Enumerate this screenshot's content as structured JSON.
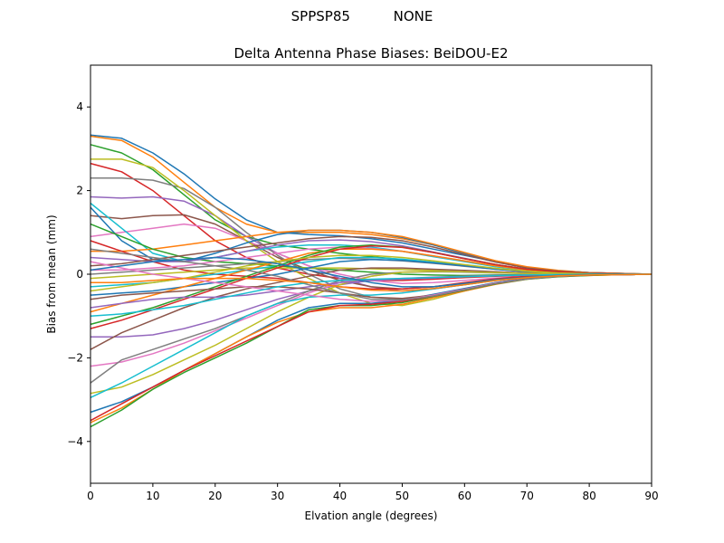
{
  "figure": {
    "suptitle_left": "SPPSP85",
    "suptitle_right": "NONE"
  },
  "chart_data": {
    "type": "line",
    "title": "Delta Antenna Phase Biases: BeiDOU-E2",
    "xlabel": "Elvation angle (degrees)",
    "ylabel": "Bias from mean (mm)",
    "xlim": [
      0,
      90
    ],
    "ylim": [
      -5,
      5
    ],
    "xticks": [
      "0",
      "10",
      "20",
      "30",
      "40",
      "50",
      "60",
      "70",
      "80",
      "90"
    ],
    "yticks": [
      "−4",
      "−2",
      "0",
      "2",
      "4"
    ],
    "grid": false,
    "legend": "none",
    "colors": [
      "#1f77b4",
      "#ff7f0e",
      "#2ca02c",
      "#d62728",
      "#9467bd",
      "#8c564b",
      "#e377c2",
      "#7f7f7f",
      "#bcbd22",
      "#17becf"
    ],
    "x": [
      0,
      5,
      10,
      15,
      20,
      25,
      30,
      35,
      40,
      45,
      50,
      55,
      60,
      65,
      70,
      75,
      80,
      85,
      90
    ],
    "series": [
      {
        "values": [
          3.33,
          3.25,
          2.9,
          2.4,
          1.8,
          1.3,
          1.0,
          0.95,
          0.92,
          0.85,
          0.75,
          0.6,
          0.45,
          0.3,
          0.17,
          0.08,
          0.04,
          0.02,
          0.0
        ]
      },
      {
        "values": [
          3.3,
          3.2,
          2.8,
          2.2,
          1.6,
          1.2,
          1.0,
          1.0,
          1.0,
          0.95,
          0.85,
          0.7,
          0.5,
          0.32,
          0.18,
          0.09,
          0.04,
          0.02,
          0.0
        ]
      },
      {
        "values": [
          3.1,
          2.9,
          2.5,
          1.9,
          1.3,
          0.9,
          0.7,
          0.6,
          0.5,
          0.42,
          0.35,
          0.28,
          0.2,
          0.13,
          0.07,
          0.03,
          0.02,
          0.01,
          0.0
        ]
      },
      {
        "values": [
          2.65,
          2.45,
          2.0,
          1.4,
          0.8,
          0.4,
          0.15,
          0.0,
          -0.1,
          -0.15,
          -0.15,
          -0.12,
          -0.08,
          -0.05,
          -0.03,
          -0.02,
          -0.01,
          0.0,
          0.0
        ]
      },
      {
        "values": [
          1.85,
          1.82,
          1.85,
          1.75,
          1.4,
          0.9,
          0.5,
          0.2,
          -0.1,
          -0.3,
          -0.4,
          -0.35,
          -0.25,
          -0.15,
          -0.08,
          -0.04,
          -0.02,
          -0.01,
          0.0
        ]
      },
      {
        "values": [
          1.4,
          1.33,
          1.4,
          1.42,
          1.2,
          0.8,
          0.4,
          0.1,
          -0.15,
          -0.3,
          -0.35,
          -0.3,
          -0.22,
          -0.13,
          -0.07,
          -0.03,
          -0.02,
          -0.01,
          0.0
        ]
      },
      {
        "values": [
          0.9,
          1.0,
          1.1,
          1.2,
          1.1,
          0.8,
          0.5,
          0.2,
          0.0,
          -0.15,
          -0.22,
          -0.2,
          -0.15,
          -0.09,
          -0.05,
          -0.02,
          -0.01,
          0.0,
          0.0
        ]
      },
      {
        "values": [
          2.3,
          2.3,
          2.25,
          2.05,
          1.6,
          1.0,
          0.45,
          0.0,
          -0.35,
          -0.55,
          -0.6,
          -0.5,
          -0.35,
          -0.2,
          -0.1,
          -0.05,
          -0.02,
          -0.01,
          0.0
        ]
      },
      {
        "values": [
          2.75,
          2.75,
          2.55,
          2.0,
          1.4,
          0.8,
          0.3,
          -0.1,
          -0.45,
          -0.7,
          -0.75,
          -0.6,
          -0.4,
          -0.22,
          -0.11,
          -0.05,
          -0.02,
          -0.01,
          0.0
        ]
      },
      {
        "values": [
          1.7,
          1.1,
          0.5,
          0.3,
          0.4,
          0.55,
          0.65,
          0.7,
          0.7,
          0.65,
          0.55,
          0.42,
          0.3,
          0.18,
          0.09,
          0.04,
          0.02,
          0.01,
          0.0
        ]
      },
      {
        "values": [
          1.6,
          0.8,
          0.35,
          0.3,
          0.5,
          0.75,
          0.95,
          1.05,
          1.05,
          1.0,
          0.88,
          0.7,
          0.5,
          0.3,
          0.16,
          0.08,
          0.04,
          0.02,
          0.0
        ]
      },
      {
        "values": [
          0.55,
          0.55,
          0.6,
          0.7,
          0.8,
          0.9,
          1.0,
          1.05,
          1.05,
          1.0,
          0.9,
          0.72,
          0.52,
          0.32,
          0.17,
          0.08,
          0.04,
          0.02,
          0.0
        ]
      },
      {
        "values": [
          1.2,
          0.9,
          0.6,
          0.4,
          0.3,
          0.25,
          0.2,
          0.15,
          0.1,
          0.05,
          0.0,
          -0.02,
          -0.03,
          -0.02,
          -0.01,
          0.0,
          0.0,
          0.0,
          0.0
        ]
      },
      {
        "values": [
          0.8,
          0.55,
          0.3,
          0.1,
          0.0,
          -0.05,
          -0.1,
          -0.2,
          -0.3,
          -0.35,
          -0.35,
          -0.3,
          -0.2,
          -0.11,
          -0.05,
          -0.02,
          -0.01,
          0.0,
          0.0
        ]
      },
      {
        "values": [
          0.4,
          0.35,
          0.3,
          0.3,
          0.4,
          0.55,
          0.7,
          0.8,
          0.82,
          0.78,
          0.68,
          0.53,
          0.38,
          0.23,
          0.12,
          0.06,
          0.03,
          0.01,
          0.0
        ]
      },
      {
        "values": [
          0.2,
          0.25,
          0.35,
          0.45,
          0.55,
          0.65,
          0.75,
          0.85,
          0.9,
          0.88,
          0.8,
          0.65,
          0.47,
          0.29,
          0.15,
          0.07,
          0.03,
          0.01,
          0.0
        ]
      },
      {
        "values": [
          0.1,
          0.1,
          0.15,
          0.2,
          0.3,
          0.4,
          0.5,
          0.6,
          0.65,
          0.62,
          0.55,
          0.44,
          0.32,
          0.2,
          0.1,
          0.05,
          0.02,
          0.01,
          0.0
        ]
      },
      {
        "values": [
          0.0,
          0.05,
          0.1,
          0.15,
          0.2,
          0.25,
          0.3,
          0.35,
          0.38,
          0.36,
          0.32,
          0.26,
          0.19,
          0.12,
          0.06,
          0.03,
          0.01,
          0.0,
          0.0
        ]
      },
      {
        "values": [
          -0.1,
          -0.05,
          0.0,
          0.05,
          0.1,
          0.15,
          0.15,
          0.15,
          0.15,
          0.13,
          0.11,
          0.09,
          0.06,
          0.04,
          0.02,
          0.01,
          0.0,
          0.0,
          0.0
        ]
      },
      {
        "values": [
          -0.3,
          -0.25,
          -0.2,
          -0.1,
          0.0,
          0.1,
          0.2,
          0.3,
          0.4,
          0.4,
          0.36,
          0.29,
          0.21,
          0.13,
          0.07,
          0.03,
          0.01,
          0.0,
          0.0
        ]
      },
      {
        "values": [
          -0.5,
          -0.45,
          -0.4,
          -0.3,
          -0.2,
          -0.1,
          0.0,
          0.15,
          0.3,
          0.35,
          0.33,
          0.27,
          0.2,
          0.12,
          0.06,
          0.03,
          0.01,
          0.0,
          0.0
        ]
      },
      {
        "values": [
          -0.9,
          -0.7,
          -0.5,
          -0.3,
          -0.1,
          0.1,
          0.3,
          0.5,
          0.6,
          0.6,
          0.55,
          0.44,
          0.32,
          0.2,
          0.1,
          0.05,
          0.02,
          0.01,
          0.0
        ]
      },
      {
        "values": [
          -1.2,
          -1.0,
          -0.8,
          -0.55,
          -0.3,
          -0.05,
          0.2,
          0.45,
          0.65,
          0.7,
          0.65,
          0.52,
          0.37,
          0.23,
          0.12,
          0.06,
          0.02,
          0.01,
          0.0
        ]
      },
      {
        "values": [
          -1.3,
          -1.1,
          -0.85,
          -0.6,
          -0.35,
          -0.1,
          0.15,
          0.4,
          0.6,
          0.68,
          0.64,
          0.52,
          0.37,
          0.23,
          0.12,
          0.06,
          0.02,
          0.01,
          0.0
        ]
      },
      {
        "values": [
          -1.5,
          -1.5,
          -1.45,
          -1.3,
          -1.1,
          -0.85,
          -0.6,
          -0.4,
          -0.25,
          -0.15,
          -0.1,
          -0.07,
          -0.05,
          -0.03,
          -0.02,
          -0.01,
          0.0,
          0.0,
          0.0
        ]
      },
      {
        "values": [
          -1.8,
          -1.4,
          -1.1,
          -0.8,
          -0.55,
          -0.35,
          -0.2,
          -0.05,
          0.1,
          0.15,
          0.15,
          0.12,
          0.09,
          0.06,
          0.03,
          0.01,
          0.0,
          0.0,
          0.0
        ]
      },
      {
        "values": [
          -2.2,
          -2.1,
          -1.9,
          -1.65,
          -1.35,
          -1.05,
          -0.75,
          -0.45,
          -0.2,
          -0.05,
          0.05,
          0.07,
          0.06,
          0.04,
          0.02,
          0.01,
          0.0,
          0.0,
          0.0
        ]
      },
      {
        "values": [
          -2.6,
          -2.05,
          -1.8,
          -1.55,
          -1.3,
          -1.0,
          -0.7,
          -0.4,
          -0.15,
          0.0,
          0.05,
          0.06,
          0.05,
          0.03,
          0.02,
          0.01,
          0.0,
          0.0,
          0.0
        ]
      },
      {
        "values": [
          -2.85,
          -2.7,
          -2.4,
          -2.05,
          -1.7,
          -1.3,
          -0.9,
          -0.55,
          -0.25,
          -0.05,
          0.05,
          0.07,
          0.06,
          0.04,
          0.02,
          0.01,
          0.0,
          0.0,
          0.0
        ]
      },
      {
        "values": [
          -2.95,
          -2.6,
          -2.2,
          -1.8,
          -1.4,
          -1.0,
          -0.7,
          -0.55,
          -0.5,
          -0.5,
          -0.45,
          -0.35,
          -0.25,
          -0.15,
          -0.08,
          -0.04,
          -0.02,
          -0.01,
          0.0
        ]
      },
      {
        "values": [
          -3.3,
          -3.05,
          -2.7,
          -2.3,
          -1.9,
          -1.5,
          -1.1,
          -0.8,
          -0.7,
          -0.7,
          -0.62,
          -0.48,
          -0.34,
          -0.2,
          -0.1,
          -0.05,
          -0.02,
          -0.01,
          0.0
        ]
      },
      {
        "values": [
          -3.55,
          -3.2,
          -2.75,
          -2.3,
          -1.9,
          -1.5,
          -1.15,
          -0.9,
          -0.8,
          -0.8,
          -0.72,
          -0.56,
          -0.4,
          -0.24,
          -0.12,
          -0.06,
          -0.03,
          -0.01,
          0.0
        ]
      },
      {
        "values": [
          -3.65,
          -3.25,
          -2.75,
          -2.35,
          -2.0,
          -1.65,
          -1.25,
          -0.85,
          -0.75,
          -0.75,
          -0.68,
          -0.53,
          -0.38,
          -0.23,
          -0.12,
          -0.06,
          -0.03,
          -0.01,
          0.0
        ]
      },
      {
        "values": [
          -3.5,
          -3.1,
          -2.7,
          -2.3,
          -1.95,
          -1.6,
          -1.25,
          -0.9,
          -0.75,
          -0.72,
          -0.65,
          -0.52,
          -0.37,
          -0.22,
          -0.11,
          -0.05,
          -0.02,
          -0.01,
          0.0
        ]
      },
      {
        "values": [
          -0.8,
          -0.7,
          -0.6,
          -0.55,
          -0.55,
          -0.5,
          -0.4,
          -0.3,
          -0.2,
          -0.15,
          -0.12,
          -0.09,
          -0.06,
          -0.04,
          -0.02,
          -0.01,
          0.0,
          0.0,
          0.0
        ]
      },
      {
        "values": [
          -0.6,
          -0.5,
          -0.45,
          -0.4,
          -0.35,
          -0.3,
          -0.3,
          -0.35,
          -0.45,
          -0.55,
          -0.58,
          -0.5,
          -0.36,
          -0.21,
          -0.11,
          -0.05,
          -0.02,
          -0.01,
          0.0
        ]
      },
      {
        "values": [
          0.3,
          0.15,
          0.0,
          -0.1,
          -0.2,
          -0.3,
          -0.4,
          -0.5,
          -0.6,
          -0.65,
          -0.62,
          -0.5,
          -0.36,
          -0.21,
          -0.11,
          -0.05,
          -0.02,
          -0.01,
          0.0
        ]
      },
      {
        "values": [
          0.6,
          0.5,
          0.4,
          0.3,
          0.2,
          0.1,
          -0.05,
          -0.25,
          -0.45,
          -0.6,
          -0.62,
          -0.52,
          -0.37,
          -0.22,
          -0.11,
          -0.05,
          -0.02,
          -0.01,
          0.0
        ]
      },
      {
        "values": [
          -0.4,
          -0.3,
          -0.2,
          -0.1,
          0.05,
          0.2,
          0.3,
          0.4,
          0.45,
          0.45,
          0.4,
          0.32,
          0.23,
          0.14,
          0.07,
          0.03,
          0.01,
          0.0,
          0.0
        ]
      },
      {
        "values": [
          -1.0,
          -0.95,
          -0.85,
          -0.75,
          -0.6,
          -0.45,
          -0.3,
          -0.2,
          -0.15,
          -0.12,
          -0.1,
          -0.08,
          -0.06,
          -0.04,
          -0.02,
          -0.01,
          0.0,
          0.0,
          0.0
        ]
      },
      {
        "values": [
          0.1,
          0.2,
          0.3,
          0.35,
          0.4,
          0.35,
          0.25,
          0.1,
          -0.05,
          -0.2,
          -0.3,
          -0.3,
          -0.22,
          -0.13,
          -0.07,
          -0.03,
          -0.01,
          0.0,
          0.0
        ]
      },
      {
        "values": [
          -0.2,
          -0.2,
          -0.15,
          -0.1,
          -0.1,
          -0.1,
          -0.15,
          -0.2,
          -0.3,
          -0.38,
          -0.4,
          -0.34,
          -0.25,
          -0.15,
          -0.08,
          -0.04,
          -0.02,
          -0.01,
          0.0
        ]
      }
    ]
  }
}
